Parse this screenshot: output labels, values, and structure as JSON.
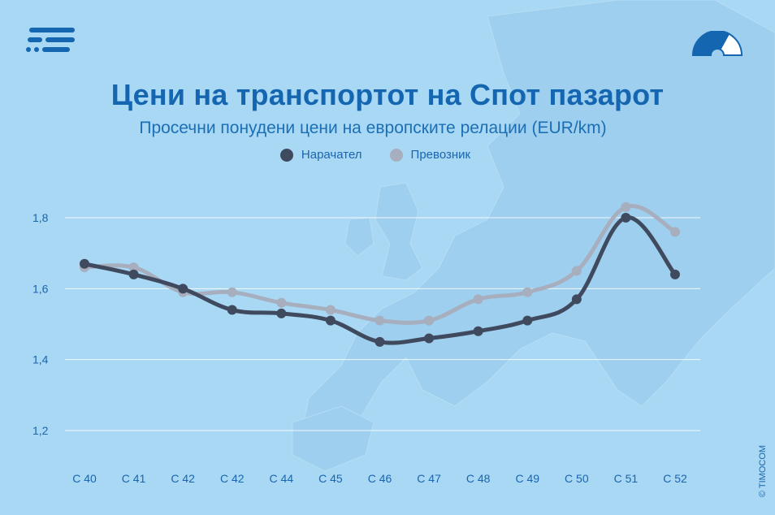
{
  "header": {
    "title": "Цени на транспортот на Спот пазарот",
    "subtitle": "Просечни понудени цени на европските релации (EUR/km)",
    "copyright": "© TIMOCOM"
  },
  "icons": {
    "logo": "timocom-logo-icon",
    "gauge": "speedometer-gauge-icon"
  },
  "chart_data": {
    "type": "line",
    "categories": [
      "C 40",
      "C 41",
      "C 42",
      "C 42",
      "C 44",
      "C 45",
      "C 46",
      "C 47",
      "C 48",
      "C 49",
      "C 50",
      "C 51",
      "C 52"
    ],
    "series": [
      {
        "name": "Нарачател",
        "color": "#3f4a5e",
        "values": [
          1.67,
          1.64,
          1.6,
          1.54,
          1.53,
          1.51,
          1.45,
          1.46,
          1.48,
          1.51,
          1.57,
          1.8,
          1.64
        ]
      },
      {
        "name": "Превозник",
        "color": "#a7aebe",
        "values": [
          1.66,
          1.66,
          1.59,
          1.59,
          1.56,
          1.54,
          1.51,
          1.51,
          1.57,
          1.59,
          1.65,
          1.83,
          1.76
        ]
      }
    ],
    "yticks": [
      "1,2",
      "1,4",
      "1,6",
      "1,8"
    ],
    "ytick_values": [
      1.2,
      1.4,
      1.6,
      1.8
    ],
    "ylim": [
      1.2,
      1.8
    ],
    "grid": true,
    "legend_position": "top-center",
    "background": "#a9d8f5",
    "grid_color": "#ffffff",
    "axis_text_color": "#1a65ad"
  }
}
